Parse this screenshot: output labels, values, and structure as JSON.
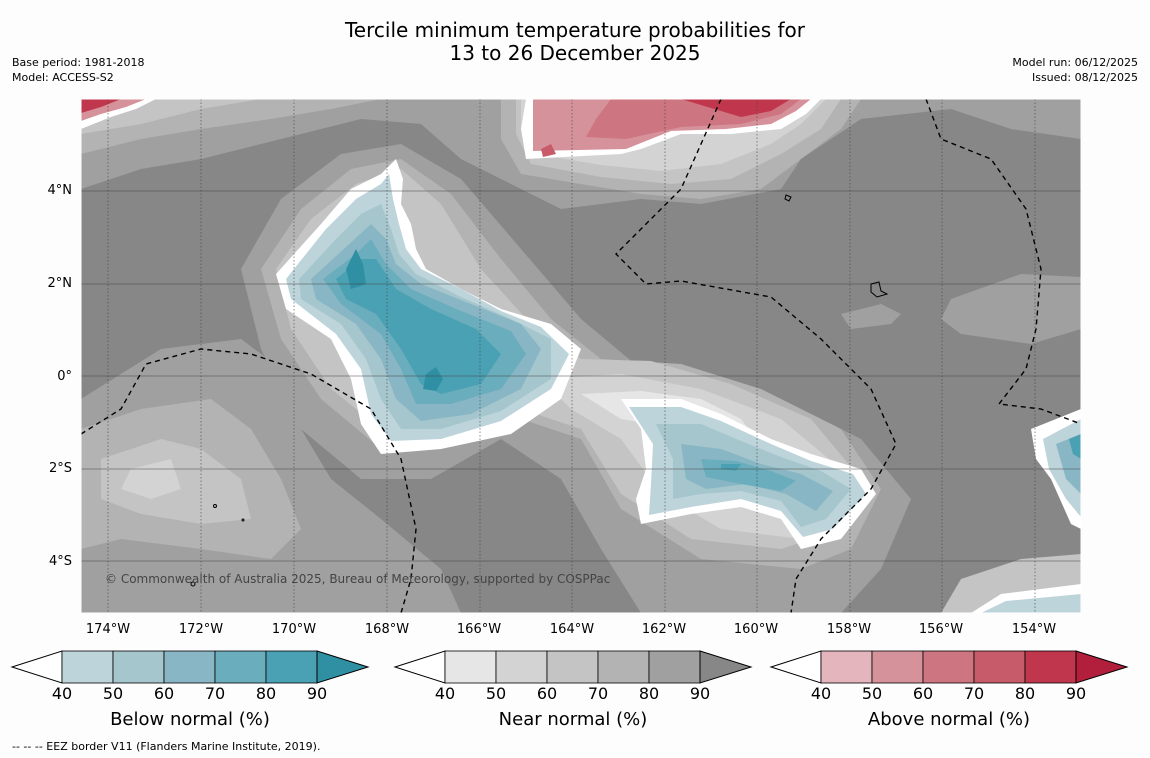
{
  "title": {
    "line1": "Tercile minimum temperature probabilities for",
    "line2": "13 to 26 December 2025"
  },
  "meta_left": {
    "base_period": "Base period: 1981-2018",
    "model": "Model: ACCESS-S2"
  },
  "meta_right": {
    "model_run": "Model run: 06/12/2025",
    "issued": "Issued: 08/12/2025"
  },
  "map": {
    "lat_labels": [
      "4°N",
      "2°N",
      "0°",
      "2°S",
      "4°S"
    ],
    "lon_labels": [
      "174°W",
      "172°W",
      "170°W",
      "168°W",
      "166°W",
      "164°W",
      "162°W",
      "160°W",
      "158°W",
      "156°W",
      "154°W"
    ],
    "copyright": "© Commonwealth of Australia 2025, Bureau of Meteorology, supported by COSPPac",
    "colors": {
      "background_high": "#878787",
      "white_contour": "#ffffff"
    }
  },
  "colorbars": [
    {
      "label": "Below normal (%)",
      "ticks": [
        "40",
        "50",
        "60",
        "70",
        "80",
        "90"
      ],
      "colors": [
        "#bdd4db",
        "#a5c6cc",
        "#89b6c4",
        "#6aadbd",
        "#4aa1b3",
        "#2f8fa3"
      ]
    },
    {
      "label": "Near normal (%)",
      "ticks": [
        "40",
        "50",
        "60",
        "70",
        "80",
        "90"
      ],
      "colors": [
        "#e6e6e6",
        "#d3d3d3",
        "#c4c4c4",
        "#b3b3b3",
        "#a0a0a0",
        "#878787"
      ]
    },
    {
      "label": "Above normal (%)",
      "ticks": [
        "40",
        "50",
        "60",
        "70",
        "80",
        "90"
      ],
      "colors": [
        "#e4b5bc",
        "#d6929b",
        "#cd7580",
        "#c75b69",
        "#c0364d",
        "#b21f3c"
      ]
    }
  ],
  "footnote": "--  --  -- EEZ border V11 (Flanders Marine Institute, 2019)."
}
